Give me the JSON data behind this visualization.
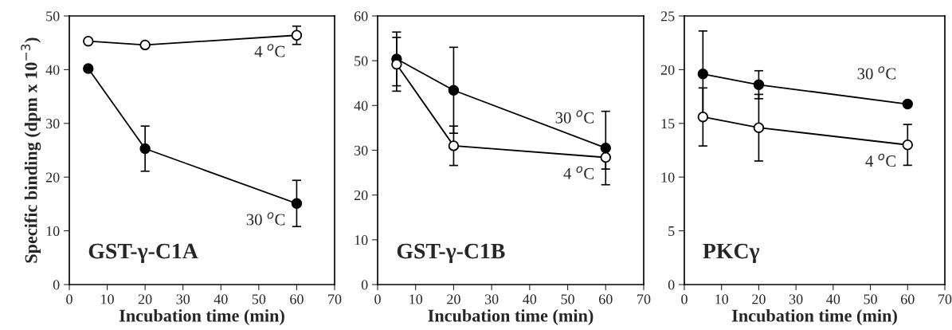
{
  "chart_data": [
    {
      "type": "line",
      "xlabel": "Incubation time (min)",
      "ylabel": "Specific binding (dpm x 10$^{−3}$)",
      "annotations": [
        "GST-γ-C1A"
      ],
      "xlim": [
        0,
        70
      ],
      "xticks": [
        0,
        10,
        20,
        30,
        40,
        50,
        60,
        70
      ],
      "ylim": [
        0,
        50
      ],
      "yticks": [
        0,
        10,
        20,
        30,
        40,
        50
      ],
      "marker": "circle",
      "x": [
        5,
        20,
        60
      ],
      "series": [
        {
          "name": "4 $^{o}$C",
          "color": "#ffffff",
          "values": [
            45.3,
            44.6,
            46.4
          ],
          "errors": [
            null,
            null,
            1.7
          ]
        },
        {
          "name": "30 $^{o}$C",
          "color": "#000000",
          "values": [
            40.2,
            25.3,
            15.1
          ],
          "errors": [
            null,
            4.2,
            4.3
          ]
        }
      ]
    },
    {
      "type": "line",
      "xlabel": "Incubation time (min)",
      "annotations": [
        "GST-γ-C1B"
      ],
      "xlim": [
        0,
        70
      ],
      "xticks": [
        0,
        10,
        20,
        30,
        40,
        50,
        60,
        70
      ],
      "ylim": [
        0,
        60
      ],
      "yticks": [
        0,
        10,
        20,
        30,
        40,
        50,
        60
      ],
      "marker": "circle",
      "x": [
        5,
        20,
        60
      ],
      "series": [
        {
          "name": "30 $^{o}$C",
          "color": "#000000",
          "values": [
            50.4,
            43.4,
            30.5
          ],
          "errors": [
            6,
            9.6,
            8.2
          ]
        },
        {
          "name": "4 $^{o}$C",
          "color": "#ffffff",
          "values": [
            49.2,
            31,
            28.4
          ],
          "errors": [
            6,
            4.4,
            2.6
          ]
        }
      ]
    },
    {
      "type": "line",
      "xlabel": "Incubation time (min)",
      "annotations": [
        "PKCγ"
      ],
      "xlim": [
        0,
        70
      ],
      "xticks": [
        0,
        10,
        20,
        30,
        40,
        50,
        60,
        70
      ],
      "ylim": [
        0,
        25
      ],
      "yticks": [
        0,
        5,
        10,
        15,
        20,
        25
      ],
      "marker": "circle",
      "x": [
        5,
        20,
        60
      ],
      "series": [
        {
          "name": "30 $^{o}$C",
          "color": "#000000",
          "values": [
            19.6,
            18.6,
            16.8
          ],
          "errors": [
            4,
            1.3,
            null
          ]
        },
        {
          "name": "4 $^{o}$C",
          "color": "#ffffff",
          "values": [
            15.6,
            14.6,
            13.0
          ],
          "errors": [
            2.7,
            3.1,
            1.9
          ]
        }
      ]
    }
  ]
}
